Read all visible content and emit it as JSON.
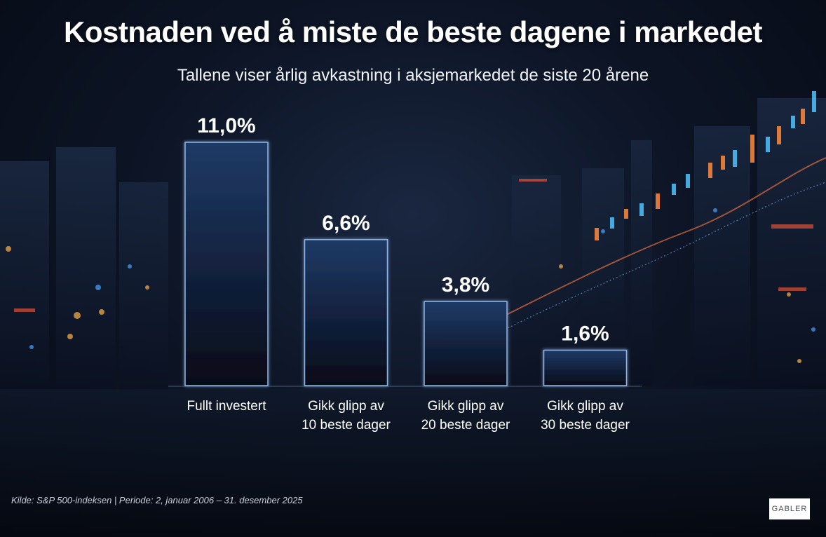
{
  "chart_data": {
    "type": "bar",
    "title": "Kostnaden ved å miste de beste dagene i markedet",
    "subtitle": "Tallene viser årlig avkastning i aksjemarkedet de siste 20 årene",
    "categories": [
      [
        "Fullt investert"
      ],
      [
        "Gikk glipp av",
        "10 beste dager"
      ],
      [
        "Gikk glipp av",
        "20 beste dager"
      ],
      [
        "Gikk glipp av",
        "30 beste dager"
      ]
    ],
    "values": [
      11.0,
      6.6,
      3.8,
      1.6
    ],
    "value_labels": [
      "11,0%",
      "6,6%",
      "3,8%",
      "1,6%"
    ],
    "xlabel": "",
    "ylabel": "",
    "ylim": [
      0,
      11.0
    ],
    "grid": false
  },
  "footer": {
    "source": "Kilde: S&P 500-indeksen  |  Periode: 2, januar 2006 – 31. desember 2025"
  },
  "logo": {
    "text": "GABLER"
  },
  "colors": {
    "bar_top": "#1f3a66",
    "bar_bottom": "#060b18",
    "bar_border": "#8fb6e6",
    "baseline": "#6f8fb8"
  }
}
